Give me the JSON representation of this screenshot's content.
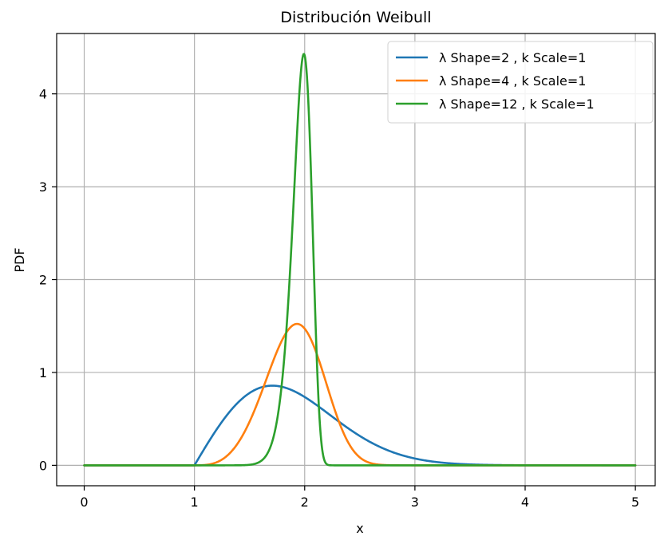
{
  "chart_data": {
    "type": "line",
    "title": "Distribución Weibull",
    "xlabel": "x",
    "ylabel": "PDF",
    "xlim": [
      -0.25,
      5.18
    ],
    "ylim": [
      -0.22,
      4.65
    ],
    "xticks": [
      0,
      1,
      2,
      3,
      4,
      5
    ],
    "yticks": [
      0,
      1,
      2,
      3,
      4
    ],
    "grid": true,
    "legend_position": "top-right",
    "x_range": [
      0,
      5
    ],
    "location": 1,
    "series": [
      {
        "name": "λ Shape=2 , k Scale=1",
        "color": "#1f77b4",
        "shape": 2,
        "scale": 1,
        "peak_x": 1.71,
        "peak_y": 0.86
      },
      {
        "name": "λ Shape=4 , k Scale=1",
        "color": "#ff7f0e",
        "shape": 4,
        "scale": 1,
        "peak_x": 1.93,
        "peak_y": 1.52
      },
      {
        "name": "λ Shape=12 , k Scale=1",
        "color": "#2ca02c",
        "shape": 12,
        "scale": 1,
        "peak_x": 1.99,
        "peak_y": 4.43
      }
    ]
  }
}
